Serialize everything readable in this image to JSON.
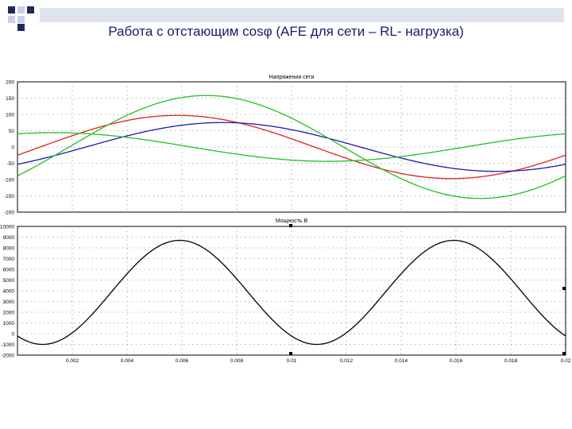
{
  "slide": {
    "title": "Работа с отстающим cosφ (AFE для сети – RL- нагрузка)"
  },
  "colors": {
    "slide_title": "#1a1a6e",
    "deco_dark": "#1f2a5c",
    "deco_light": "#c9cfe6",
    "grid": "#9a9a9a",
    "series_red": "#e02020",
    "series_blue": "#1a1ab0",
    "series_green": "#20c020",
    "series_black": "#000000"
  },
  "chart_data": [
    {
      "type": "line",
      "title": "Напряжения сети",
      "xlabel": "",
      "ylabel": "",
      "xlim": [
        0,
        0.02
      ],
      "ylim": [
        -200,
        200
      ],
      "yticks": [
        "200",
        "150",
        "100",
        "50",
        "0",
        "-50",
        "-100",
        "-150",
        "-200"
      ],
      "grid": true,
      "series": [
        {
          "color": "#e02020",
          "amplitude": 97,
          "phase_deg": -15,
          "freq_hz": 50
        },
        {
          "color": "#1a1ab0",
          "amplitude": 75,
          "phase_deg": -45,
          "freq_hz": 50
        },
        {
          "color": "#20c020",
          "amplitude": 158,
          "phase_deg": -34,
          "freq_hz": 50
        },
        {
          "color": "#20c020",
          "amplitude": 44,
          "phase_deg": 66,
          "freq_hz": 50
        }
      ]
    },
    {
      "type": "line",
      "title": "Мощность В",
      "xlabel": "",
      "ylabel": "",
      "xlim": [
        0,
        0.02
      ],
      "ylim": [
        -2000,
        10000
      ],
      "yticks": [
        "10000",
        "9000",
        "8000",
        "7000",
        "6000",
        "5000",
        "4000",
        "3000",
        "2000",
        "1000",
        "0",
        "-1000",
        "-2000"
      ],
      "xticks": [
        "0.002",
        "0.004",
        "0.006",
        "0.008",
        "0.01",
        "0.012",
        "0.014",
        "0.016",
        "0.018",
        "0.02"
      ],
      "grid": true,
      "series": [
        {
          "color": "#000000",
          "offset": 3850,
          "amplitude": 4850,
          "freq_hz": 100,
          "phase_deg": -123
        }
      ]
    }
  ]
}
